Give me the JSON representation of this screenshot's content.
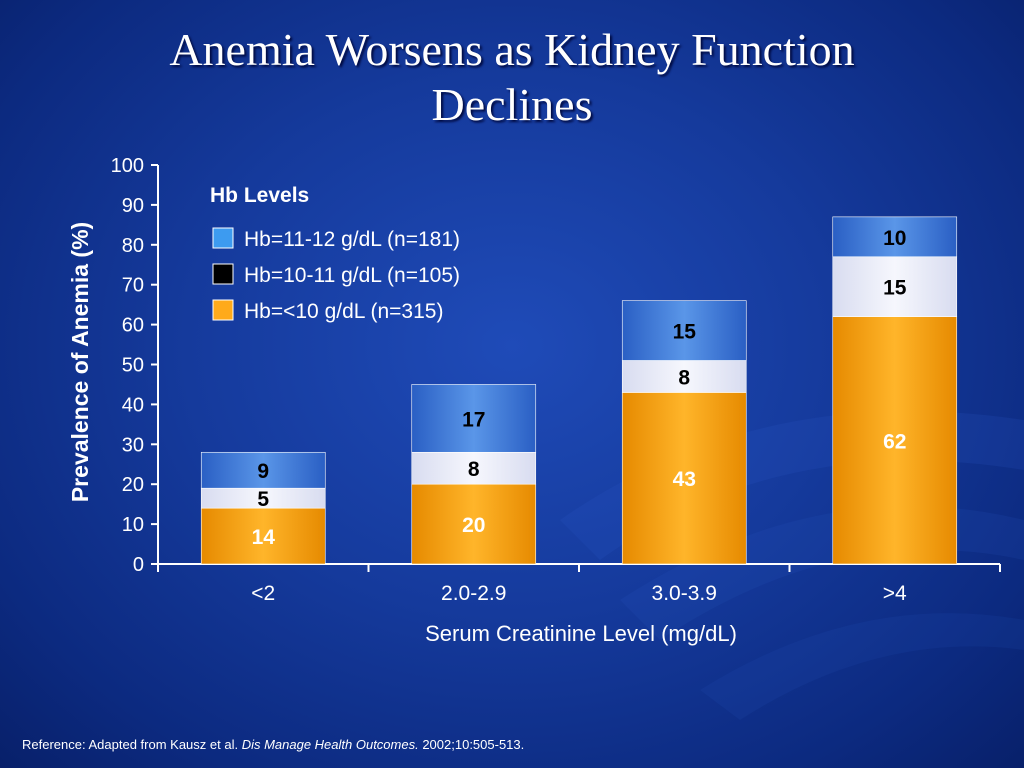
{
  "slide": {
    "title_line1": "Anemia Worsens as Kidney Function",
    "title_line2": "Declines",
    "reference_prefix": "Reference: Adapted from Kausz et al. ",
    "reference_journal": "Dis Manage Health Outcomes.",
    "reference_suffix": " 2002;10:505-513."
  },
  "colors": {
    "background": "#153a9c",
    "orange": "#ffaa1a",
    "white_band": "#eef0fa",
    "blue_band": "#3d7ddb",
    "legend_black": "#000000",
    "text_white": "#ffffff"
  },
  "chart_data": {
    "type": "bar",
    "stacked": true,
    "categories": [
      "<2",
      "2.0-2.9",
      "3.0-3.9",
      ">4"
    ],
    "xlabel": "Serum Creatinine Level (mg/dL)",
    "ylabel": "Prevalence of Anemia (%)",
    "ylim": [
      0,
      100
    ],
    "yticks": [
      0,
      10,
      20,
      30,
      40,
      50,
      60,
      70,
      80,
      90,
      100
    ],
    "legend_title": "Hb Levels",
    "legend_position": "top-left",
    "series": [
      {
        "name": "Hb=<10 g/dL (n=315)",
        "values": [
          14,
          20,
          43,
          62
        ],
        "color": "#ffaa1a",
        "legend_swatch": "#ffaa1a",
        "label_color": "#ffffff"
      },
      {
        "name": "Hb=10-11 g/dL (n=105)",
        "values": [
          5,
          8,
          8,
          15
        ],
        "color": "#eef0fa",
        "legend_swatch": "#000000",
        "label_color": "#000000"
      },
      {
        "name": "Hb=11-12 g/dL (n=181)",
        "values": [
          9,
          17,
          15,
          10
        ],
        "color": "#3d7ddb",
        "legend_swatch": "#3d9bf0",
        "label_color": "#000000"
      }
    ],
    "legend_order": [
      2,
      1,
      0
    ],
    "grid": false
  }
}
